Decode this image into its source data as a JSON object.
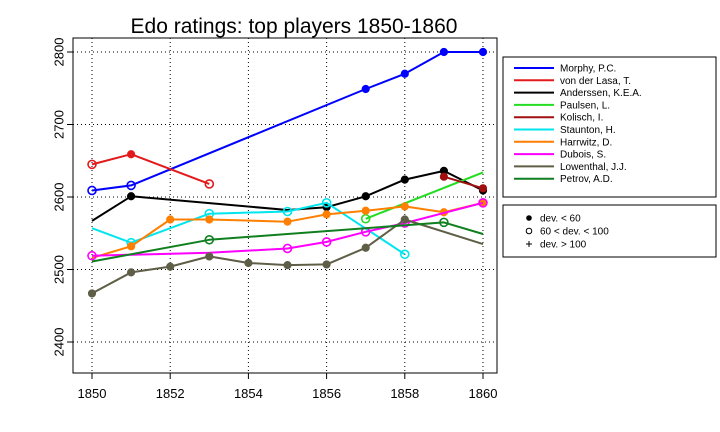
{
  "chart_data": {
    "type": "line",
    "title": "Edo ratings: top players 1850-1860",
    "xlabel": "",
    "ylabel": "",
    "xlim": [
      1850,
      1860
    ],
    "ylim": [
      2400,
      2800
    ],
    "x_ticks": [
      "1850",
      "1852",
      "1854",
      "1856",
      "1858",
      "1860"
    ],
    "y_ticks": [
      "2400",
      "2500",
      "2600",
      "2700",
      "2800"
    ],
    "grid": true,
    "legend_position": "right",
    "series": [
      {
        "name": "Morphy, P.C.",
        "color": "#0000ff",
        "points": [
          [
            1850,
            2609,
            "open"
          ],
          [
            1851,
            2616,
            "open"
          ],
          [
            1857,
            2749,
            "filled"
          ],
          [
            1858,
            2770,
            "filled"
          ],
          [
            1859,
            2800,
            "filled"
          ],
          [
            1860,
            2800,
            "filled"
          ]
        ]
      },
      {
        "name": "von der Lasa, T.",
        "color": "#e31a1c",
        "points": [
          [
            1850,
            2645,
            "open"
          ],
          [
            1851,
            2659,
            "filled"
          ],
          [
            1853,
            2618,
            "open"
          ]
        ]
      },
      {
        "name": "Anderssen, K.E.A.",
        "color": "#000000",
        "points": [
          [
            1850,
            2567,
            "none"
          ],
          [
            1851,
            2601,
            "filled"
          ],
          [
            1855,
            2582,
            "none"
          ],
          [
            1856,
            2586,
            "filled"
          ],
          [
            1857,
            2601,
            "filled"
          ],
          [
            1858,
            2624,
            "filled"
          ],
          [
            1859,
            2636,
            "filled"
          ],
          [
            1860,
            2609,
            "filled"
          ]
        ]
      },
      {
        "name": "Paulsen, L.",
        "color": "#22dd22",
        "points": [
          [
            1857,
            2570,
            "open"
          ],
          [
            1860,
            2634,
            "none"
          ]
        ]
      },
      {
        "name": "Kolisch, I.",
        "color": "#a01010",
        "points": [
          [
            1859,
            2628,
            "filled"
          ],
          [
            1860,
            2612,
            "filled"
          ]
        ]
      },
      {
        "name": "Staunton, H.",
        "color": "#00e5ee",
        "points": [
          [
            1850,
            2557,
            "none"
          ],
          [
            1851,
            2537,
            "open"
          ],
          [
            1853,
            2577,
            "open"
          ],
          [
            1855,
            2580,
            "open"
          ],
          [
            1856,
            2592,
            "open"
          ],
          [
            1858,
            2521,
            "open"
          ]
        ]
      },
      {
        "name": "Harrwitz, D.",
        "color": "#ff7f00",
        "points": [
          [
            1850,
            2516,
            "none"
          ],
          [
            1851,
            2532,
            "filled"
          ],
          [
            1852,
            2569,
            "filled"
          ],
          [
            1853,
            2569,
            "filled"
          ],
          [
            1855,
            2566,
            "filled"
          ],
          [
            1856,
            2576,
            "filled"
          ],
          [
            1857,
            2581,
            "filled"
          ],
          [
            1858,
            2587,
            "filled"
          ],
          [
            1859,
            2579,
            "filled"
          ],
          [
            1860,
            2592,
            "filled"
          ]
        ]
      },
      {
        "name": "Dubois, S.",
        "color": "#ff00ff",
        "points": [
          [
            1850,
            2519,
            "open"
          ],
          [
            1853,
            2523,
            "none"
          ],
          [
            1855,
            2529,
            "open"
          ],
          [
            1856,
            2538,
            "open"
          ],
          [
            1857,
            2552,
            "open"
          ],
          [
            1858,
            2564,
            "open"
          ],
          [
            1860,
            2592,
            "open"
          ]
        ]
      },
      {
        "name": "Lowenthal, J.J.",
        "color": "#5f5f48",
        "points": [
          [
            1850,
            2467,
            "filled"
          ],
          [
            1851,
            2496,
            "filled"
          ],
          [
            1852,
            2504,
            "filled"
          ],
          [
            1853,
            2518,
            "filled"
          ],
          [
            1854,
            2509,
            "filled"
          ],
          [
            1855,
            2506,
            "filled"
          ],
          [
            1856,
            2507,
            "filled"
          ],
          [
            1857,
            2530,
            "filled"
          ],
          [
            1858,
            2569,
            "filled"
          ],
          [
            1860,
            2535,
            "none"
          ]
        ]
      },
      {
        "name": "Petrov, A.D.",
        "color": "#0f7f1f",
        "points": [
          [
            1850,
            2511,
            "none"
          ],
          [
            1853,
            2541,
            "open"
          ],
          [
            1859,
            2565,
            "open"
          ],
          [
            1860,
            2549,
            "none"
          ]
        ]
      }
    ],
    "marker_legend": [
      {
        "symbol": "filled",
        "label": "dev. < 60"
      },
      {
        "symbol": "open",
        "label": "60 < dev. < 100"
      },
      {
        "symbol": "plus",
        "label": "dev. > 100"
      }
    ]
  }
}
